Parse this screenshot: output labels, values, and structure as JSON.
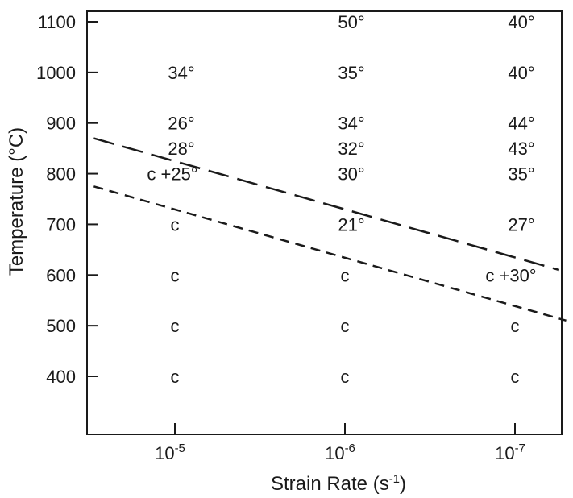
{
  "chart_data": {
    "type": "scatter",
    "title": "",
    "xlabel": "Strain Rate (s-1)",
    "ylabel": "Temperature (°C)",
    "x_axis": {
      "scale": "log",
      "direction": "decreasing",
      "ticks": [
        {
          "value": 1e-05,
          "base": "10",
          "exp": "-5"
        },
        {
          "value": 1e-06,
          "base": "10",
          "exp": "-6"
        },
        {
          "value": 1e-07,
          "base": "10",
          "exp": "-7"
        }
      ]
    },
    "ylim": [
      350,
      1100
    ],
    "y_ticks": [
      {
        "value": 400,
        "label": "400"
      },
      {
        "value": 500,
        "label": "500"
      },
      {
        "value": 600,
        "label": "600"
      },
      {
        "value": 700,
        "label": "700"
      },
      {
        "value": 800,
        "label": "800"
      },
      {
        "value": 900,
        "label": "900"
      },
      {
        "value": 1000,
        "label": "1000"
      },
      {
        "value": 1100,
        "label": "1100"
      }
    ],
    "grid": false,
    "points": [
      {
        "strain_rate": 1e-05,
        "temperature": 1000,
        "label": "34°"
      },
      {
        "strain_rate": 1e-05,
        "temperature": 900,
        "label": "26°"
      },
      {
        "strain_rate": 1e-05,
        "temperature": 850,
        "label": "28°"
      },
      {
        "strain_rate": 1e-05,
        "temperature": 800,
        "label": "c +25°"
      },
      {
        "strain_rate": 1e-05,
        "temperature": 700,
        "label": "c"
      },
      {
        "strain_rate": 1e-05,
        "temperature": 600,
        "label": "c"
      },
      {
        "strain_rate": 1e-05,
        "temperature": 500,
        "label": "c"
      },
      {
        "strain_rate": 1e-05,
        "temperature": 400,
        "label": "c"
      },
      {
        "strain_rate": 1e-06,
        "temperature": 1100,
        "label": "50°"
      },
      {
        "strain_rate": 1e-06,
        "temperature": 1000,
        "label": "35°"
      },
      {
        "strain_rate": 1e-06,
        "temperature": 900,
        "label": "34°"
      },
      {
        "strain_rate": 1e-06,
        "temperature": 850,
        "label": "32°"
      },
      {
        "strain_rate": 1e-06,
        "temperature": 800,
        "label": "30°"
      },
      {
        "strain_rate": 1e-06,
        "temperature": 700,
        "label": "21°"
      },
      {
        "strain_rate": 1e-06,
        "temperature": 600,
        "label": "c"
      },
      {
        "strain_rate": 1e-06,
        "temperature": 500,
        "label": "c"
      },
      {
        "strain_rate": 1e-06,
        "temperature": 400,
        "label": "c"
      },
      {
        "strain_rate": 1e-07,
        "temperature": 1100,
        "label": "40°"
      },
      {
        "strain_rate": 1e-07,
        "temperature": 1000,
        "label": "40°"
      },
      {
        "strain_rate": 1e-07,
        "temperature": 900,
        "label": "44°"
      },
      {
        "strain_rate": 1e-07,
        "temperature": 850,
        "label": "43°"
      },
      {
        "strain_rate": 1e-07,
        "temperature": 800,
        "label": "35°"
      },
      {
        "strain_rate": 1e-07,
        "temperature": 700,
        "label": "27°"
      },
      {
        "strain_rate": 1e-07,
        "temperature": 600,
        "label": "c +30°"
      },
      {
        "strain_rate": 1e-07,
        "temperature": 500,
        "label": "c"
      },
      {
        "strain_rate": 1e-07,
        "temperature": 400,
        "label": "c"
      }
    ],
    "lines": [
      {
        "style": "long-dash",
        "from": {
          "strain_rate": 3e-05,
          "temperature": 870
        },
        "to": {
          "strain_rate": 5.5e-08,
          "temperature": 610
        }
      },
      {
        "style": "short-dash",
        "from": {
          "strain_rate": 3e-05,
          "temperature": 775
        },
        "to": {
          "strain_rate": 5e-08,
          "temperature": 510
        }
      }
    ],
    "colors": {
      "ink": "#1a1a1a",
      "background": "#ffffff"
    }
  }
}
